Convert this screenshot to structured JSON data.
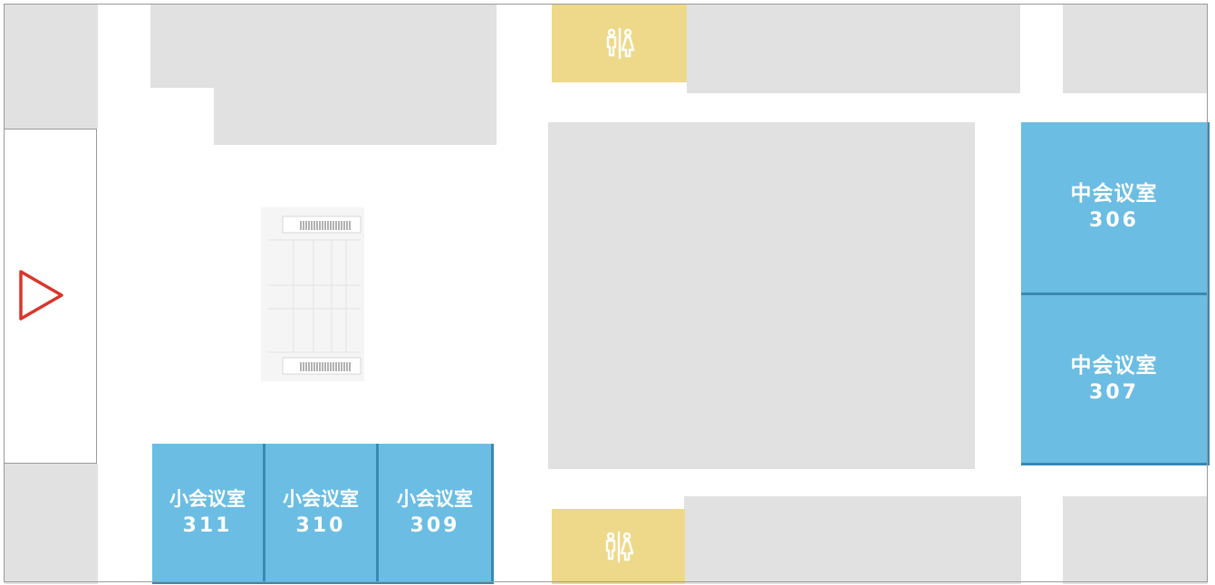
{
  "floor_map": {
    "meeting_rooms": [
      {
        "id": "306",
        "name": "中会议室",
        "number": "306"
      },
      {
        "id": "307",
        "name": "中会议室",
        "number": "307"
      },
      {
        "id": "311",
        "name": "小会议室",
        "number": "311"
      },
      {
        "id": "310",
        "name": "小会议室",
        "number": "310"
      },
      {
        "id": "309",
        "name": "小会议室",
        "number": "309"
      }
    ],
    "restrooms": [
      {
        "id": "top",
        "icon": "restroom-icon"
      },
      {
        "id": "bottom",
        "icon": "restroom-icon"
      }
    ],
    "entrance": {
      "icon": "entrance-arrow-icon",
      "color": "#d9362b"
    },
    "stairs": {
      "icon": "staircase-icon"
    },
    "colors": {
      "meeting_room": "#6bbde3",
      "restroom": "#eed98b",
      "building_block": "#e1e1e1"
    }
  }
}
